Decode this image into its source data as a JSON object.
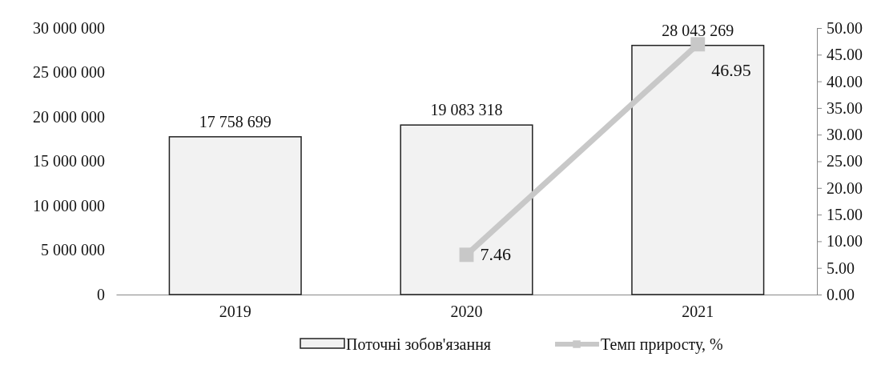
{
  "chart_data": {
    "type": "bar",
    "categories": [
      "2019",
      "2020",
      "2021"
    ],
    "series": [
      {
        "name": "Поточні зобов'язання",
        "color": "#f2f2f2",
        "values": [
          17758699,
          19083318,
          28043269
        ],
        "value_labels": [
          "17 758 699",
          "19 083 318",
          "28 043 269"
        ]
      },
      {
        "name": "Темп приросту, %",
        "type": "line",
        "axis": "y2",
        "color": "#c8c8c8",
        "marker": "square",
        "values": [
          null,
          7.46,
          46.95
        ],
        "value_labels": [
          null,
          "7.46",
          "46.95"
        ]
      }
    ],
    "ylim": [
      0,
      30000000
    ],
    "yticks": [
      {
        "value": 0,
        "label": "0"
      },
      {
        "value": 5000000,
        "label": "5 000 000"
      },
      {
        "value": 10000000,
        "label": "10 000 000"
      },
      {
        "value": 15000000,
        "label": "15 000 000"
      },
      {
        "value": 20000000,
        "label": "20 000 000"
      },
      {
        "value": 25000000,
        "label": "25 000 000"
      },
      {
        "value": 30000000,
        "label": "30 000 000"
      }
    ],
    "y2lim": [
      0,
      50
    ],
    "y2ticks": [
      {
        "value": 0,
        "label": "0.00"
      },
      {
        "value": 5,
        "label": "5.00"
      },
      {
        "value": 10,
        "label": "10.00"
      },
      {
        "value": 15,
        "label": "15.00"
      },
      {
        "value": 20,
        "label": "20.00"
      },
      {
        "value": 25,
        "label": "25.00"
      },
      {
        "value": 30,
        "label": "30.00"
      },
      {
        "value": 35,
        "label": "35.00"
      },
      {
        "value": 40,
        "label": "40.00"
      },
      {
        "value": 45,
        "label": "45.00"
      },
      {
        "value": 50,
        "label": "50.00"
      }
    ],
    "grid": false,
    "legend": "bottom"
  }
}
